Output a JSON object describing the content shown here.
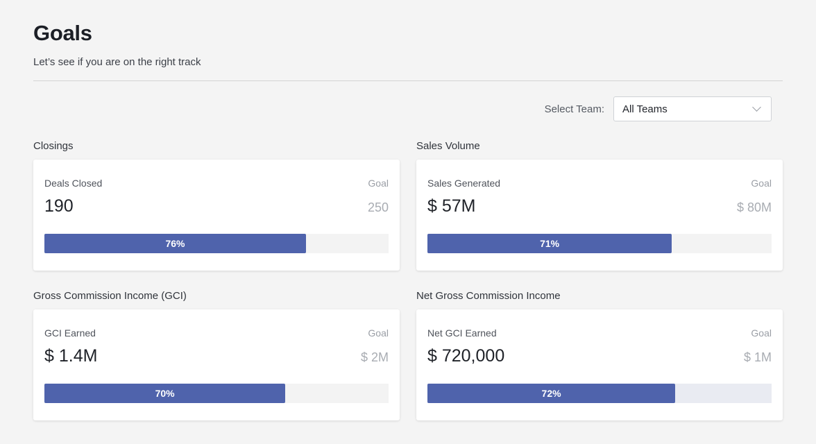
{
  "header": {
    "title": "Goals",
    "subtitle": "Let’s see if you are on the right track"
  },
  "filter": {
    "label": "Select Team:",
    "selected": "All Teams"
  },
  "sections": [
    {
      "title": "Closings",
      "metric_label": "Deals Closed",
      "goal_label": "Goal",
      "value": "190",
      "goal": "250",
      "progress": 76,
      "progress_label": "76%"
    },
    {
      "title": "Sales Volume",
      "metric_label": "Sales Generated",
      "goal_label": "Goal",
      "value": "$ 57M",
      "goal": "$ 80M",
      "progress": 71,
      "progress_label": "71%"
    },
    {
      "title": "Gross Commission Income (GCI)",
      "metric_label": "GCI Earned",
      "goal_label": "Goal",
      "value": "$ 1.4M",
      "goal": "$ 2M",
      "progress": 70,
      "progress_label": "70%"
    },
    {
      "title": "Net Gross Commission Income",
      "metric_label": "Net GCI Earned",
      "goal_label": "Goal",
      "value": "$ 720,000",
      "goal": "$ 1M",
      "progress": 72,
      "progress_label": "72%"
    }
  ],
  "colors": {
    "accent": "#4f63ac",
    "background": "#f4f4f4"
  }
}
